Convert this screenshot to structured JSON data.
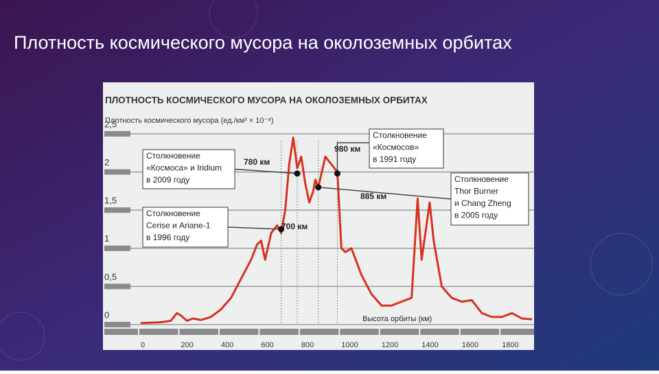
{
  "slide_title": "Плотность космического мусора на околоземных орбитах",
  "chart_data": {
    "type": "line",
    "title": "ПЛОТНОСТЬ КОСМИЧЕСКОГО МУСОРА НА ОКОЛОЗЕМНЫХ ОРБИТАХ",
    "y_label": "Плотность космического мусора (ед./км³ × 10⁻⁸)",
    "x_label": "Высота орбиты (км)",
    "color": "#d9301e",
    "x": [
      0,
      100,
      150,
      180,
      200,
      230,
      260,
      300,
      350,
      400,
      450,
      500,
      550,
      580,
      600,
      620,
      650,
      680,
      700,
      720,
      740,
      760,
      780,
      800,
      820,
      840,
      860,
      870,
      885,
      920,
      950,
      980,
      1000,
      1020,
      1050,
      1100,
      1150,
      1200,
      1250,
      1300,
      1350,
      1380,
      1400,
      1440,
      1460,
      1500,
      1550,
      1600,
      1650,
      1700,
      1750,
      1800,
      1850,
      1900,
      1950
    ],
    "values": [
      0.02,
      0.03,
      0.05,
      0.15,
      0.12,
      0.05,
      0.08,
      0.06,
      0.1,
      0.2,
      0.35,
      0.6,
      0.85,
      1.05,
      1.1,
      0.85,
      1.2,
      1.3,
      1.2,
      1.5,
      2.1,
      2.45,
      2.05,
      2.2,
      1.85,
      1.6,
      1.75,
      1.9,
      1.8,
      2.2,
      2.1,
      2.0,
      1.0,
      0.95,
      1.0,
      0.65,
      0.4,
      0.25,
      0.25,
      0.3,
      0.35,
      1.65,
      0.85,
      1.6,
      1.1,
      0.5,
      0.35,
      0.3,
      0.32,
      0.15,
      0.1,
      0.1,
      0.15,
      0.08,
      0.07
    ],
    "xlim": [
      0,
      1950
    ],
    "ylim": [
      0,
      2.5
    ],
    "xticks": [
      0,
      200,
      400,
      600,
      800,
      1000,
      1200,
      1400,
      1600,
      1800
    ],
    "yticks": [
      0,
      {
        "value": 0.5,
        "label": "0,5"
      },
      1,
      {
        "value": 1.5,
        "label": "1,5"
      },
      2,
      {
        "value": 2.5,
        "label": "2,5"
      }
    ],
    "grid": true,
    "points": [
      {
        "x": 700,
        "y": 1.25,
        "label": "700 км"
      },
      {
        "x": 780,
        "y": 1.98,
        "label": "780 км"
      },
      {
        "x": 885,
        "y": 1.8,
        "label": "885 км"
      },
      {
        "x": 980,
        "y": 1.98,
        "label": "980 км"
      }
    ],
    "callouts": [
      {
        "lines": [
          "Столкновение",
          "«Космоса» и Iridium",
          "в 2009 году"
        ]
      },
      {
        "lines": [
          "Столкновение",
          "Cerise и Ariane-1",
          "в 1996 году"
        ]
      },
      {
        "lines": [
          "Столкновение",
          "«Космосов»",
          "в 1991 году"
        ]
      },
      {
        "lines": [
          "Столкновение",
          "Thor Burner",
          "и Chang Zheng",
          "в 2005 году"
        ]
      }
    ]
  }
}
